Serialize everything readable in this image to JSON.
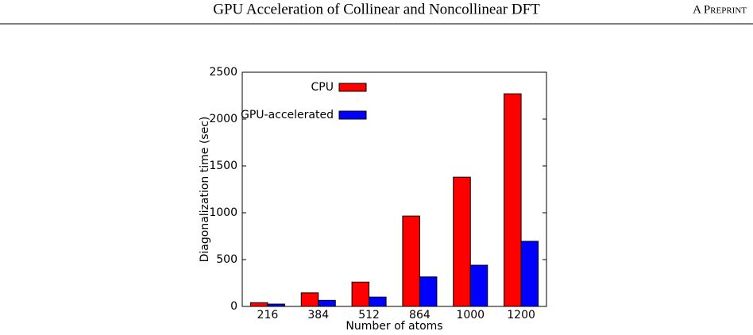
{
  "header": {
    "title": "GPU Acceleration of Collinear and Noncollinear DFT",
    "label": "A Preprint"
  },
  "chart_data": {
    "type": "bar",
    "xlabel": "Number of atoms",
    "ylabel": "Diagonalization time (sec)",
    "categories": [
      "216",
      "384",
      "512",
      "864",
      "1000",
      "1200"
    ],
    "series": [
      {
        "name": "CPU",
        "color": "#ff0000",
        "values": [
          40,
          145,
          260,
          965,
          1380,
          2270
        ]
      },
      {
        "name": "GPU-accelerated",
        "color": "#0000ff",
        "values": [
          25,
          65,
          100,
          315,
          440,
          695
        ]
      }
    ],
    "ylim": [
      0,
      2500
    ],
    "yticks": [
      0,
      500,
      1000,
      1500,
      2000,
      2500
    ],
    "grid": false,
    "legend": "upper left"
  }
}
